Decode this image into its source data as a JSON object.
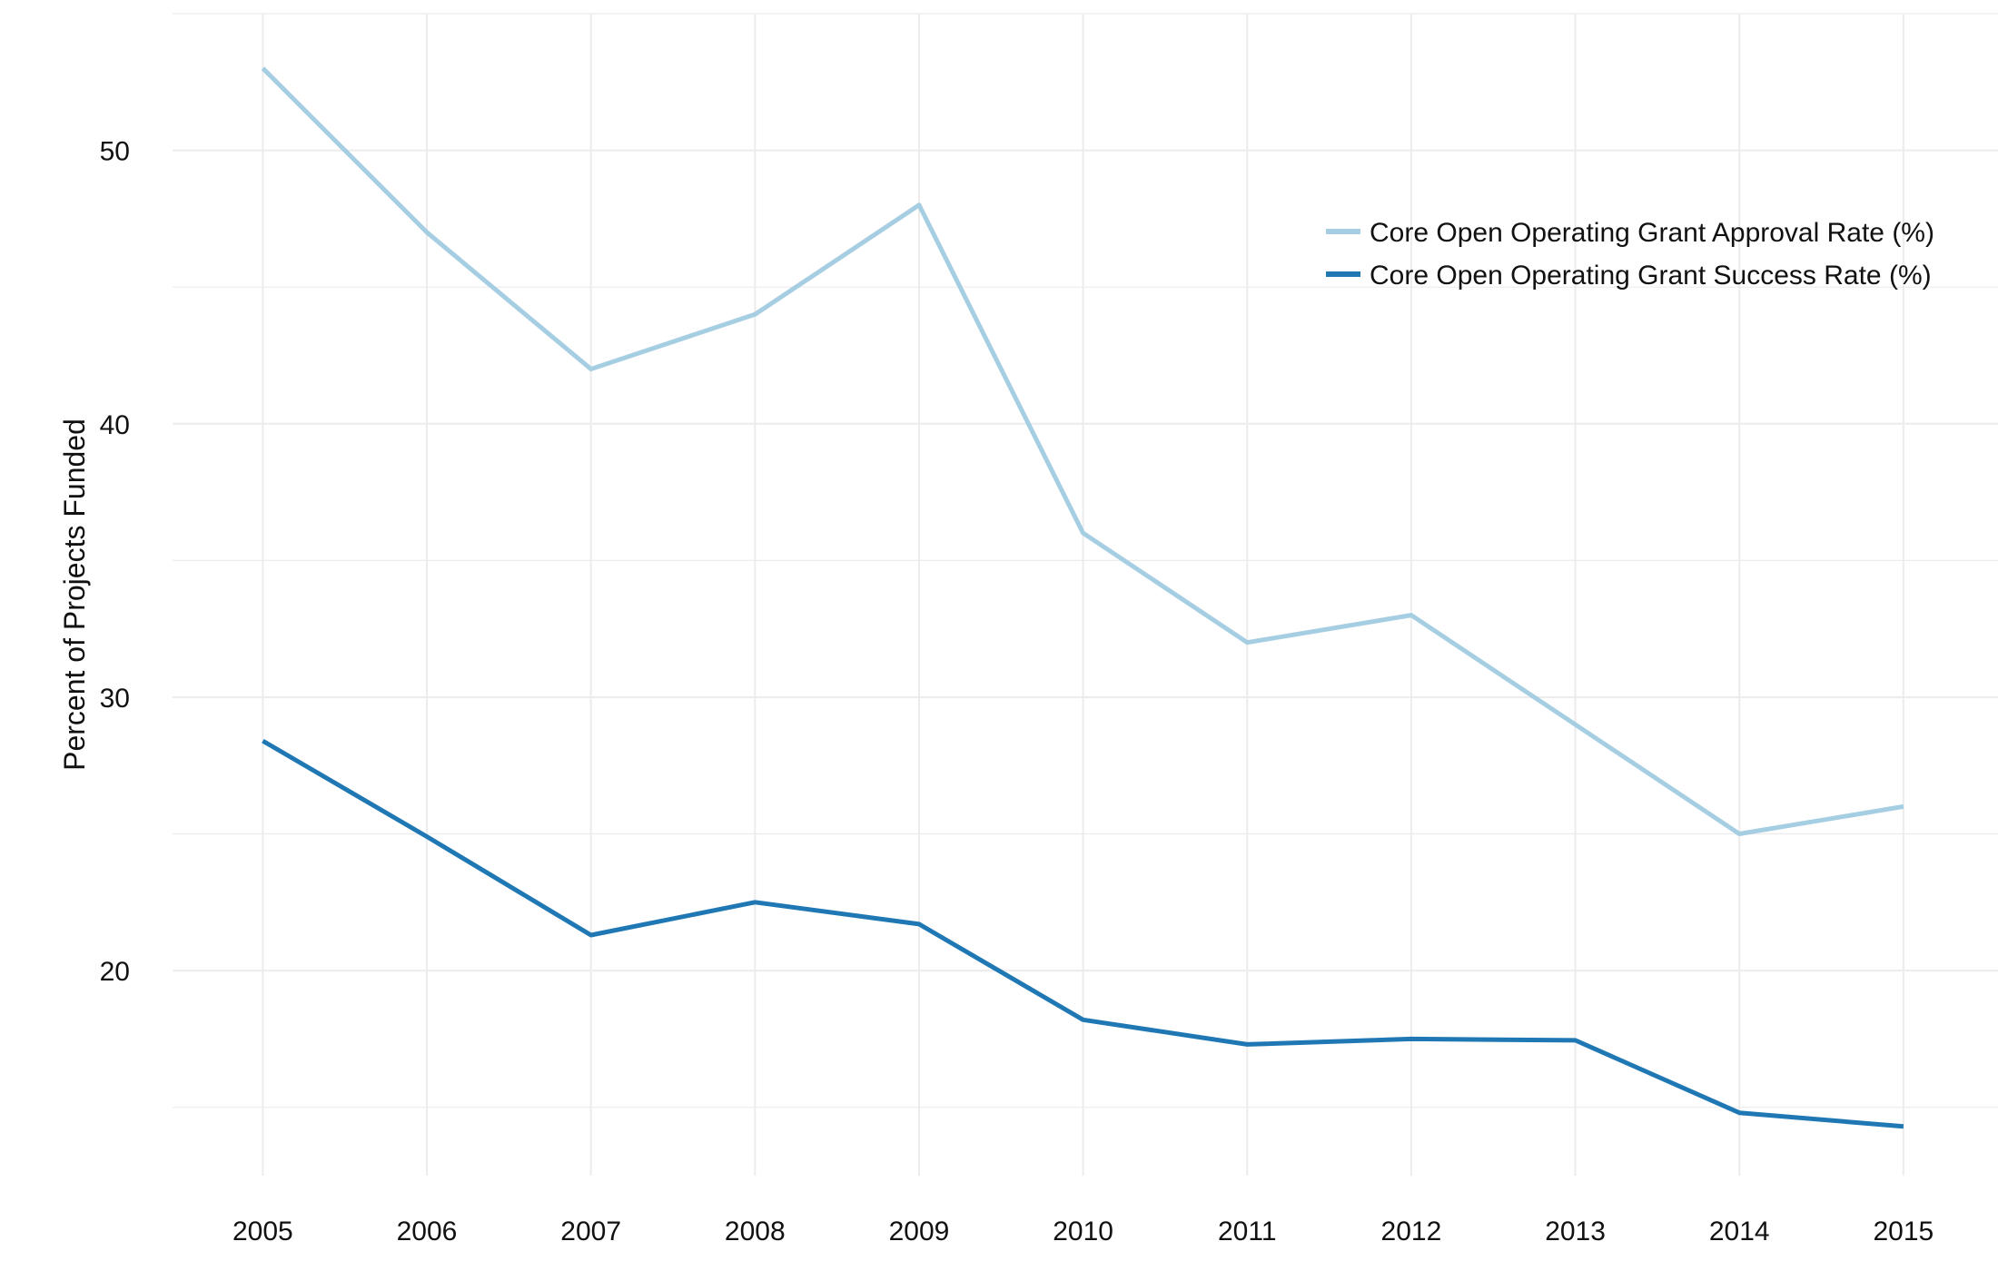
{
  "chart_data": {
    "type": "line",
    "title": "",
    "xlabel": "",
    "ylabel": "Percent of Projects Funded",
    "x": [
      2005,
      2006,
      2007,
      2008,
      2009,
      2010,
      2011,
      2012,
      2013,
      2014,
      2015
    ],
    "x_tick_labels": [
      "2005",
      "2006",
      "2007",
      "2008",
      "2009",
      "2010",
      "2011",
      "2012",
      "2013",
      "2014",
      "2015"
    ],
    "y_ticks": [
      20,
      30,
      40,
      50
    ],
    "y_tick_labels": [
      "20",
      "30",
      "40",
      "50"
    ],
    "xlim": [
      2004.45,
      2015.2
    ],
    "ylim": [
      12.5,
      55
    ],
    "grid": true,
    "legend_position": "top-right",
    "series": [
      {
        "name": "Core Open Operating Grant Approval Rate (%)",
        "color": "#a6cee3",
        "values": [
          53,
          47,
          42,
          44,
          48,
          36,
          32,
          33,
          29,
          25,
          26
        ]
      },
      {
        "name": "Core Open Operating Grant Success Rate (%)",
        "color": "#1f78b4",
        "values": [
          28.4,
          24.9,
          21.3,
          22.5,
          21.7,
          18.2,
          17.3,
          17.5,
          17.45,
          14.8,
          14.3
        ]
      }
    ]
  },
  "colors": {
    "grid": "#ececec",
    "background": "#ffffff",
    "text": "#111111"
  }
}
